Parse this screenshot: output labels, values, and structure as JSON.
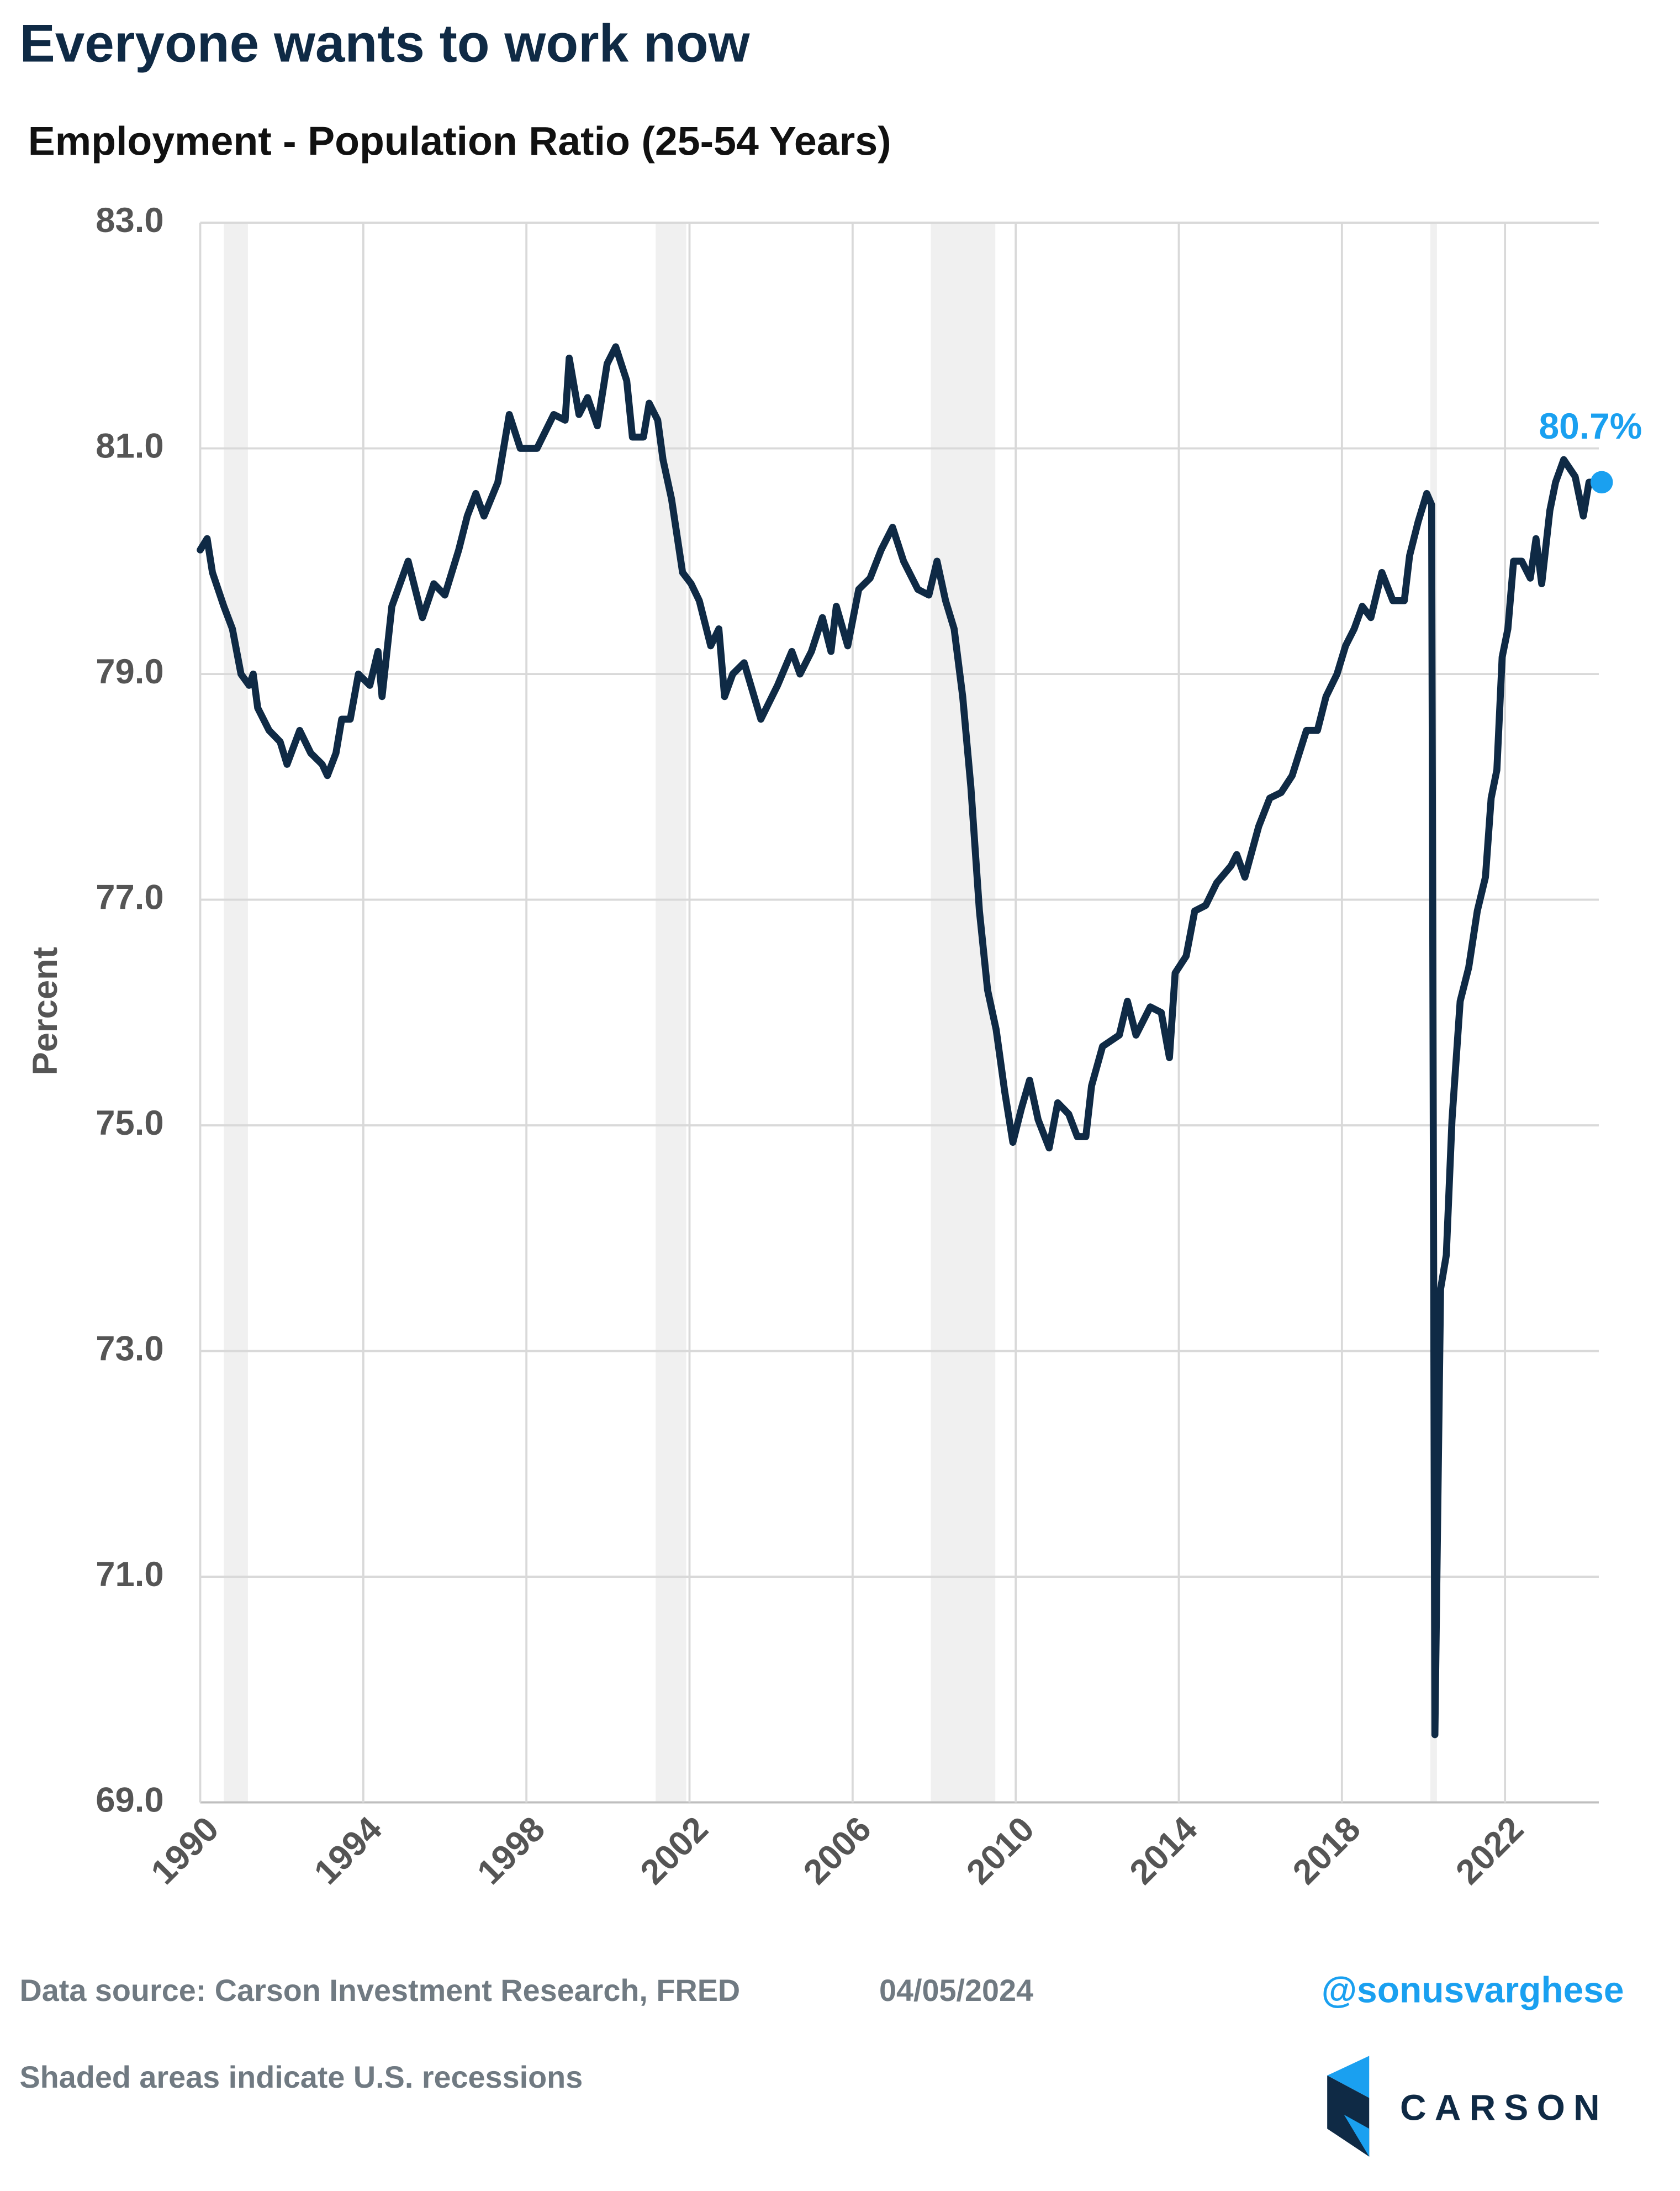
{
  "chart_data": {
    "type": "line",
    "title": "Everyone wants to work now",
    "subtitle": "Employment - Population Ratio (25-54 Years)",
    "y_label": "Percent",
    "source": "Data source: Carson Investment Research, FRED",
    "date": "04/05/2024",
    "handle": "@sonusvarghese",
    "note": "Shaded areas indicate U.S. recessions",
    "brand": "CARSON",
    "xlim": [
      1990,
      2024.3
    ],
    "ylim": [
      69,
      83
    ],
    "xticks": [
      1990,
      1994,
      1998,
      2002,
      2006,
      2010,
      2014,
      2018,
      2022
    ],
    "yticks": [
      {
        "value": 69,
        "label": "69.0"
      },
      {
        "value": 71,
        "label": "71.0"
      },
      {
        "value": 73,
        "label": "73.0"
      },
      {
        "value": 75,
        "label": "75.0"
      },
      {
        "value": 77,
        "label": "77.0"
      },
      {
        "value": 79,
        "label": "79.0"
      },
      {
        "value": 81,
        "label": "81.0"
      },
      {
        "value": 83,
        "label": "83.0"
      }
    ],
    "grid": true,
    "recessions": [
      [
        1990.58,
        1991.17
      ],
      [
        2001.17,
        2001.92
      ],
      [
        2007.92,
        2009.5
      ],
      [
        2020.17,
        2020.33
      ]
    ],
    "recession_color": "#f0f0f0",
    "series": [
      {
        "name": "Employment - Population Ratio (25-54 Years)",
        "color": "#0f2a45",
        "x": [
          1990.0,
          1990.17,
          1990.3,
          1990.58,
          1990.79,
          1991.0,
          1991.2,
          1991.3,
          1991.41,
          1991.69,
          1991.96,
          1992.13,
          1992.44,
          1992.71,
          1992.99,
          1993.12,
          1993.33,
          1993.47,
          1993.68,
          1993.88,
          1994.16,
          1994.36,
          1994.46,
          1994.7,
          1994.9,
          1995.1,
          1995.45,
          1995.73,
          1996.0,
          1996.34,
          1996.55,
          1996.76,
          1996.96,
          1997.3,
          1997.58,
          1997.85,
          1998.26,
          1998.67,
          1998.95,
          1999.05,
          1999.29,
          1999.5,
          1999.74,
          1999.98,
          2000.19,
          2000.46,
          2000.6,
          2000.87,
          2001.01,
          2001.22,
          2001.35,
          2001.56,
          2001.83,
          2002.04,
          2002.24,
          2002.52,
          2002.72,
          2002.86,
          2003.06,
          2003.34,
          2003.75,
          2004.16,
          2004.51,
          2004.71,
          2004.99,
          2005.26,
          2005.47,
          2005.6,
          2005.88,
          2006.15,
          2006.43,
          2006.7,
          2006.98,
          2007.25,
          2007.6,
          2007.87,
          2008.07,
          2008.28,
          2008.49,
          2008.7,
          2008.9,
          2009.11,
          2009.31,
          2009.52,
          2009.73,
          2009.93,
          2010.14,
          2010.34,
          2010.55,
          2010.82,
          2011.03,
          2011.3,
          2011.51,
          2011.72,
          2011.86,
          2012.13,
          2012.54,
          2012.74,
          2012.95,
          2013.3,
          2013.57,
          2013.77,
          2013.91,
          2014.18,
          2014.39,
          2014.66,
          2014.93,
          2015.28,
          2015.42,
          2015.62,
          2015.96,
          2016.23,
          2016.51,
          2016.78,
          2017.13,
          2017.4,
          2017.61,
          2017.88,
          2018.09,
          2018.3,
          2018.5,
          2018.71,
          2018.98,
          2019.25,
          2019.53,
          2019.66,
          2019.87,
          2020.08,
          2020.2,
          2020.28,
          2020.42,
          2020.56,
          2020.7,
          2020.9,
          2021.11,
          2021.32,
          2021.52,
          2021.66,
          2021.8,
          2021.93,
          2022.07,
          2022.21,
          2022.41,
          2022.62,
          2022.76,
          2022.9,
          2023.1,
          2023.24,
          2023.44,
          2023.72,
          2023.92,
          2024.06,
          2024.2
        ],
        "values": [
          80.1,
          80.2,
          79.9,
          79.6,
          79.4,
          79.0,
          78.9,
          79.0,
          78.7,
          78.5,
          78.4,
          78.2,
          78.5,
          78.3,
          78.2,
          78.1,
          78.3,
          78.6,
          78.6,
          79.0,
          78.9,
          79.2,
          78.8,
          79.6,
          79.8,
          80.0,
          79.5,
          79.8,
          79.7,
          80.1,
          80.4,
          80.6,
          80.4,
          80.7,
          81.3,
          81.0,
          81.0,
          81.3,
          81.25,
          81.8,
          81.3,
          81.45,
          81.2,
          81.75,
          81.9,
          81.6,
          81.1,
          81.1,
          81.4,
          81.25,
          80.9,
          80.55,
          79.9,
          79.8,
          79.65,
          79.25,
          79.4,
          78.8,
          79.0,
          79.1,
          78.6,
          78.9,
          79.2,
          79.0,
          79.2,
          79.5,
          79.2,
          79.6,
          79.25,
          79.75,
          79.85,
          80.1,
          80.3,
          80.0,
          79.75,
          79.7,
          80.0,
          79.65,
          79.4,
          78.8,
          78.0,
          76.9,
          76.2,
          75.85,
          75.3,
          74.85,
          75.15,
          75.4,
          75.05,
          74.8,
          75.2,
          75.1,
          74.9,
          74.9,
          75.35,
          75.7,
          75.8,
          76.1,
          75.8,
          76.05,
          76.0,
          75.6,
          76.35,
          76.5,
          76.9,
          76.95,
          77.15,
          77.3,
          77.4,
          77.2,
          77.65,
          77.9,
          77.95,
          78.1,
          78.5,
          78.5,
          78.8,
          79.0,
          79.25,
          79.4,
          79.6,
          79.5,
          79.9,
          79.65,
          79.65,
          80.05,
          80.35,
          80.6,
          80.5,
          69.6,
          73.55,
          73.85,
          75.05,
          76.1,
          76.4,
          76.9,
          77.2,
          77.9,
          78.15,
          79.15,
          79.4,
          80.0,
          80.0,
          79.85,
          80.2,
          79.8,
          80.45,
          80.7,
          80.9,
          80.75,
          80.4,
          80.7,
          80.7
        ]
      }
    ],
    "annotation": {
      "x": 2024.2,
      "y": 80.7,
      "label": "80.7%",
      "color": "#1aa0f0"
    }
  }
}
